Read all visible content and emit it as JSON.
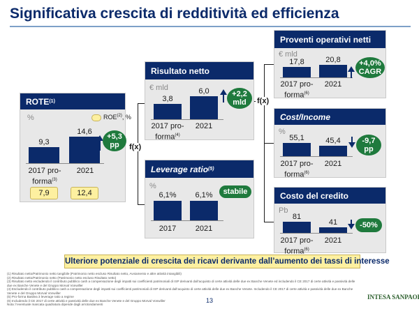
{
  "title": "Significativa crescita di redditività ed efficienza",
  "connector_label": "f(x)",
  "rote": {
    "title": "ROTE",
    "title_sup": "(1)",
    "unit": "%",
    "legend": "ROE",
    "legend_sup": "(2)",
    "legend_suffix": ", %",
    "bars": [
      {
        "value_label": "9,3",
        "cat_line1": "2017 pro-",
        "cat_line2": "forma",
        "cat_sup": "(3)"
      },
      {
        "value_label": "14,6",
        "cat_line1": "2021",
        "cat_line2": "",
        "cat_sup": ""
      }
    ],
    "roe_values": [
      "7,9",
      "12,4"
    ],
    "delta": "+5,3\npp"
  },
  "risultato": {
    "title": "Risultato netto",
    "unit": "€ mld",
    "bars": [
      {
        "value_label": "3,8",
        "cat_line1": "2017 pro-",
        "cat_line2": "forma",
        "cat_sup": "(4)"
      },
      {
        "value_label": "6,0",
        "cat_line1": "2021",
        "cat_line2": "",
        "cat_sup": ""
      }
    ],
    "delta": "+2,2\nmld"
  },
  "leverage": {
    "title": "Leverage ratio",
    "title_sup": "(5)",
    "unit": "%",
    "bars": [
      {
        "value_label": "6,1%",
        "cat_line1": "2017",
        "cat_line2": "",
        "cat_sup": ""
      },
      {
        "value_label": "6,1%",
        "cat_line1": "2021",
        "cat_line2": "",
        "cat_sup": ""
      }
    ],
    "delta": "stabile"
  },
  "proventi": {
    "title": "Proventi operativi netti",
    "unit": "€ mld",
    "bars": [
      {
        "value_label": "17,8",
        "cat_line1": "2017 pro-",
        "cat_line2": "forma",
        "cat_sup": "(6)"
      },
      {
        "value_label": "20,8",
        "cat_line1": "2021",
        "cat_line2": "",
        "cat_sup": ""
      }
    ],
    "delta": "+4,0%\nCAGR"
  },
  "cost_income": {
    "title": "Cost/Income",
    "unit": "%",
    "bars": [
      {
        "value_label": "55,1",
        "cat_line1": "2017 pro-",
        "cat_line2": "forma",
        "cat_sup": "(6)"
      },
      {
        "value_label": "45,4",
        "cat_line1": "2021",
        "cat_line2": "",
        "cat_sup": ""
      }
    ],
    "delta": "-9,7\npp"
  },
  "costo_credito": {
    "title": "Costo del credito",
    "unit": "Pb",
    "bars": [
      {
        "value_label": "81",
        "cat_line1": "2017 pro-",
        "cat_line2": "forma",
        "cat_sup": "(6)"
      },
      {
        "value_label": "41",
        "cat_line1": "2021",
        "cat_line2": "",
        "cat_sup": ""
      }
    ],
    "delta": "-50%"
  },
  "banner": "Ulteriore potenziale di crescita dei ricavi derivante dall’aumento dei tassi di interesse",
  "notes": [
    "(1) Risultato netto/Patrimonio netto tangibile (Patrimonio netto escluso Risultato netto, Avviamento e altre attività intangibili)",
    "(2) Risultato netto/Patrimonio netto (Patrimonio netto escluso Risultato netto)",
    "(3) Risultato netto escludendo il contributo pubblico cash a compensazione degli impatti sui coefficienti patrimoniali di ISP derivanti dall’acquisto di certe attività delle due ex Banche Venete ed includendo il CE 2017 di certe attività e passività delle due ex Banche Venete e del Gruppo Morval Vonwiller",
    "(4) Escludendo il contributo pubblico cash a compensazione degli impatti sui coefficienti patrimoniali di ISP derivanti dall’acquisto di certe attività delle due ex Banche Venete. Includendo il CE 2017 di certe attività e passività delle due ex Banche Venete e del Gruppo Morval Vonwiller",
    "(5) Pro-forma Basilea 3 leverage ratio a regime",
    "(6) Includendo il CE 2017 di certe attività e passività delle due ex Banche Venete e del Gruppo Morval Vonwiller",
    "Nota: l’eventuale mancata quadratura dipende dagli arrotondamenti"
  ],
  "page_number": "13",
  "logo": "INTESA SANPAOLO",
  "colors": {
    "navy": "#0b2a6a",
    "green": "#1f7a3d",
    "yellow": "#fdf0a0",
    "panel_bg": "#e8e8e8"
  },
  "icons": {
    "up": "arrow-up-icon",
    "down": "arrow-down-icon"
  },
  "chart_data": [
    {
      "type": "bar",
      "title": "ROTE",
      "unit": "%",
      "categories": [
        "2017 pro-forma",
        "2021"
      ],
      "values": [
        9.3,
        14.6
      ],
      "roe": [
        7.9,
        12.4
      ],
      "annotation": "+5,3 pp"
    },
    {
      "type": "bar",
      "title": "Risultato netto",
      "unit": "€ mld",
      "categories": [
        "2017 pro-forma",
        "2021"
      ],
      "values": [
        3.8,
        6.0
      ],
      "annotation": "+2,2 mld"
    },
    {
      "type": "bar",
      "title": "Leverage ratio",
      "unit": "%",
      "categories": [
        "2017",
        "2021"
      ],
      "values": [
        6.1,
        6.1
      ],
      "annotation": "stabile"
    },
    {
      "type": "bar",
      "title": "Proventi operativi netti",
      "unit": "€ mld",
      "categories": [
        "2017 pro-forma",
        "2021"
      ],
      "values": [
        17.8,
        20.8
      ],
      "annotation": "+4,0% CAGR"
    },
    {
      "type": "bar",
      "title": "Cost/Income",
      "unit": "%",
      "categories": [
        "2017 pro-forma",
        "2021"
      ],
      "values": [
        55.1,
        45.4
      ],
      "annotation": "-9,7 pp"
    },
    {
      "type": "bar",
      "title": "Costo del credito",
      "unit": "Pb",
      "categories": [
        "2017 pro-forma",
        "2021"
      ],
      "values": [
        81,
        41
      ],
      "annotation": "-50%"
    }
  ]
}
